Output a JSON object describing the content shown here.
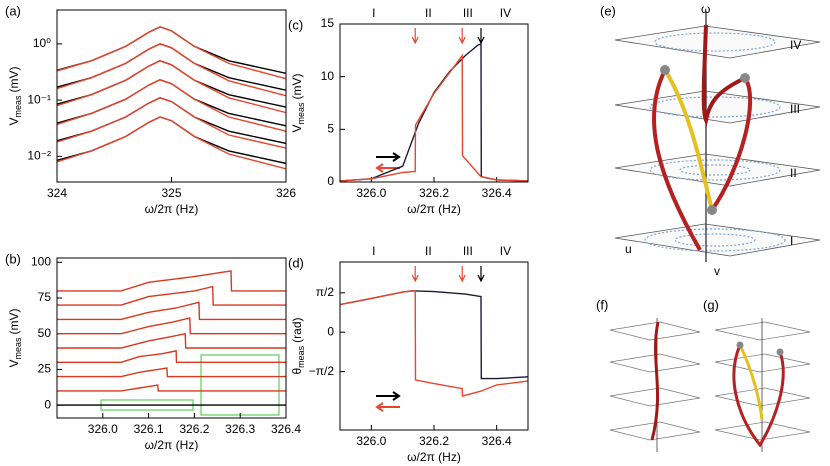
{
  "chart_data": [
    {
      "type": "line",
      "panel": "(a)",
      "log_y": true,
      "xlabel": "ω/2π (Hz)",
      "ylabel": "V",
      "ylabel_sub": "meas",
      "ylabel_unit": "(mV)",
      "xlim": [
        324,
        326
      ],
      "xticks": [
        324,
        325,
        326
      ],
      "ylim": [
        0.0035,
        4
      ],
      "yticks": [
        {
          "value": 1,
          "label": "10⁰"
        },
        {
          "value": 0.1,
          "label": "10⁻¹"
        },
        {
          "value": 0.01,
          "label": "10⁻²"
        }
      ],
      "x": [
        324,
        324.3,
        324.6,
        324.8,
        324.9,
        325,
        325.2,
        325.5,
        326
      ],
      "series": [
        {
          "color": "#000000",
          "values": [
            0.34,
            0.5,
            0.9,
            1.6,
            2.0,
            1.7,
            0.9,
            0.5,
            0.3
          ]
        },
        {
          "color": "#000000",
          "values": [
            0.17,
            0.25,
            0.45,
            0.8,
            1.0,
            0.85,
            0.45,
            0.25,
            0.15
          ]
        },
        {
          "color": "#000000",
          "values": [
            0.085,
            0.125,
            0.225,
            0.4,
            0.5,
            0.425,
            0.225,
            0.125,
            0.075
          ]
        },
        {
          "color": "#000000",
          "values": [
            0.039,
            0.058,
            0.104,
            0.184,
            0.23,
            0.196,
            0.104,
            0.058,
            0.035
          ]
        },
        {
          "color": "#000000",
          "values": [
            0.019,
            0.028,
            0.05,
            0.088,
            0.11,
            0.094,
            0.05,
            0.028,
            0.017
          ]
        },
        {
          "color": "#000000",
          "values": [
            0.0085,
            0.0125,
            0.0225,
            0.04,
            0.05,
            0.043,
            0.0225,
            0.0125,
            0.0075
          ]
        },
        {
          "color": "#e8452c",
          "values": [
            0.33,
            0.5,
            0.9,
            1.6,
            2.0,
            1.7,
            0.9,
            0.45,
            0.24
          ]
        },
        {
          "color": "#e8452c",
          "values": [
            0.16,
            0.25,
            0.45,
            0.8,
            1.0,
            0.85,
            0.45,
            0.22,
            0.12
          ]
        },
        {
          "color": "#e8452c",
          "values": [
            0.08,
            0.125,
            0.225,
            0.4,
            0.5,
            0.425,
            0.225,
            0.11,
            0.06
          ]
        },
        {
          "color": "#e8452c",
          "values": [
            0.037,
            0.058,
            0.104,
            0.184,
            0.23,
            0.196,
            0.104,
            0.05,
            0.028
          ]
        },
        {
          "color": "#e8452c",
          "values": [
            0.018,
            0.028,
            0.05,
            0.088,
            0.11,
            0.094,
            0.05,
            0.024,
            0.014
          ]
        },
        {
          "color": "#e8452c",
          "values": [
            0.008,
            0.0125,
            0.0225,
            0.04,
            0.05,
            0.043,
            0.0225,
            0.011,
            0.006
          ]
        }
      ]
    },
    {
      "type": "line",
      "panel": "(b)",
      "xlabel": "ω/2π (Hz)",
      "ylabel": "V",
      "ylabel_sub": "meas",
      "ylabel_unit": "(mV)",
      "xlim": [
        325.9,
        326.4
      ],
      "xticks": [
        {
          "value": 326,
          "label": "326.0"
        },
        {
          "value": 326.1,
          "label": "326.1"
        },
        {
          "value": 326.2,
          "label": "326.2"
        },
        {
          "value": 326.3,
          "label": "326.3"
        },
        {
          "value": 326.4,
          "label": "326.4"
        }
      ],
      "ylim": [
        -9,
        103
      ],
      "yticks": [
        0,
        25,
        50,
        75,
        100
      ],
      "series": [
        {
          "color": "#000000",
          "x": [
            325.9,
            326.4
          ],
          "values": [
            0,
            0
          ]
        },
        {
          "color": "#d9381e",
          "x": [
            325.9,
            326.04,
            326.08,
            326.1,
            326.12,
            326.121,
            326.4
          ],
          "values": [
            10,
            10,
            12,
            13,
            14,
            10,
            10
          ]
        },
        {
          "color": "#d9381e",
          "x": [
            325.9,
            326.04,
            326.08,
            326.12,
            326.14,
            326.141,
            326.4
          ],
          "values": [
            20,
            20,
            23,
            25,
            26,
            20,
            20
          ]
        },
        {
          "color": "#d9381e",
          "x": [
            325.9,
            326.04,
            326.08,
            326.13,
            326.16,
            326.161,
            326.4
          ],
          "values": [
            30,
            30,
            34,
            36,
            38,
            30,
            30
          ]
        },
        {
          "color": "#d9381e",
          "x": [
            325.9,
            326.04,
            326.1,
            326.15,
            326.18,
            326.181,
            326.4
          ],
          "values": [
            40,
            40,
            45,
            48,
            50,
            40,
            40
          ]
        },
        {
          "color": "#d9381e",
          "x": [
            325.9,
            326.04,
            326.1,
            326.15,
            326.19,
            326.191,
            326.4
          ],
          "values": [
            50,
            50,
            55,
            58,
            61,
            50,
            50
          ]
        },
        {
          "color": "#d9381e",
          "x": [
            325.9,
            326.04,
            326.1,
            326.16,
            326.21,
            326.211,
            326.4
          ],
          "values": [
            60,
            60,
            65,
            68,
            72,
            60,
            60
          ]
        },
        {
          "color": "#d9381e",
          "x": [
            325.9,
            326.04,
            326.1,
            326.2,
            326.24,
            326.241,
            326.4
          ],
          "values": [
            70,
            70,
            76,
            80,
            83,
            70,
            70
          ]
        },
        {
          "color": "#d9381e",
          "x": [
            325.9,
            326.04,
            326.1,
            326.2,
            326.28,
            326.281,
            326.4
          ],
          "values": [
            80,
            80,
            86,
            90,
            94,
            80,
            80
          ]
        }
      ]
    },
    {
      "type": "line",
      "panel": "(c)",
      "xlabel": "ω/2π (Hz)",
      "ylabel": "V",
      "ylabel_sub": "meas",
      "ylabel_unit": "(mV)",
      "regions": [
        "I",
        "II",
        "III",
        "IV"
      ],
      "xlim": [
        325.9,
        326.5
      ],
      "xticks": [
        {
          "value": 326,
          "label": "326.0"
        },
        {
          "value": 326.2,
          "label": "326.2"
        },
        {
          "value": 326.4,
          "label": "326.4"
        }
      ],
      "ylim": [
        0,
        15
      ],
      "yticks": [
        0,
        5,
        10,
        15
      ],
      "markers": [
        {
          "x": 326.14,
          "color": "#e8452c"
        },
        {
          "x": 326.29,
          "color": "#e8452c"
        },
        {
          "x": 326.35,
          "color": "#000000"
        }
      ],
      "series": [
        {
          "color": "#1a1a3a",
          "x": [
            325.9,
            326.0,
            326.1,
            326.15,
            326.2,
            326.25,
            326.3,
            326.34,
            326.35,
            326.351,
            326.4,
            326.5
          ],
          "values": [
            0.1,
            0.3,
            1.5,
            5.5,
            8.5,
            10.5,
            12,
            13,
            13.1,
            0.5,
            0.2,
            0.1
          ]
        },
        {
          "color": "#e8452c",
          "x": [
            325.9,
            326.0,
            326.1,
            326.14,
            326.141,
            326.2,
            326.25,
            326.29,
            326.291,
            326.35,
            326.4,
            326.5
          ],
          "values": [
            0.1,
            0.3,
            0.9,
            1.0,
            5.4,
            8.4,
            10.4,
            12.0,
            2.5,
            0.5,
            0.2,
            0.1
          ]
        }
      ]
    },
    {
      "type": "line",
      "panel": "(d)",
      "xlabel": "ω/2π (Hz)",
      "ylabel": "θ",
      "ylabel_sub": "meas",
      "ylabel_unit": "(rad)",
      "regions": [
        "I",
        "II",
        "III",
        "IV"
      ],
      "xlim": [
        325.9,
        326.5
      ],
      "xticks": [
        {
          "value": 326,
          "label": "326.0"
        },
        {
          "value": 326.2,
          "label": "326.2"
        },
        {
          "value": 326.4,
          "label": "326.4"
        }
      ],
      "ylim": [
        -3.9,
        2.8
      ],
      "yticks": [
        {
          "value": 1.5708,
          "label": "π/2"
        },
        0,
        {
          "value": -1.5708,
          "label": "−π/2"
        }
      ],
      "markers": [
        {
          "x": 326.14,
          "color": "#e8452c"
        },
        {
          "x": 326.29,
          "color": "#e8452c"
        },
        {
          "x": 326.35,
          "color": "#000000"
        }
      ],
      "series": [
        {
          "color": "#1a1a3a",
          "x": [
            325.9,
            326.0,
            326.1,
            326.13,
            326.2,
            326.3,
            326.35,
            326.351,
            326.4,
            326.5
          ],
          "values": [
            1.1,
            1.35,
            1.6,
            1.65,
            1.62,
            1.52,
            1.42,
            -1.85,
            -1.85,
            -1.78
          ]
        },
        {
          "color": "#e8452c",
          "x": [
            325.9,
            326.0,
            326.1,
            326.14,
            326.141,
            326.2,
            326.29,
            326.291,
            326.35,
            326.4,
            326.5
          ],
          "values": [
            1.1,
            1.35,
            1.6,
            1.65,
            -1.9,
            -2.05,
            -2.25,
            -2.55,
            -2.35,
            -2.1,
            -1.95
          ]
        }
      ]
    }
  ],
  "diagrams": {
    "e": {
      "panel": "(e)",
      "axis_w": "ω",
      "axis_u": "u",
      "axis_v": "v",
      "levels": [
        "IV",
        "III",
        "II",
        "I"
      ]
    },
    "f": {
      "panel": "(f)"
    },
    "g": {
      "panel": "(g)"
    }
  }
}
